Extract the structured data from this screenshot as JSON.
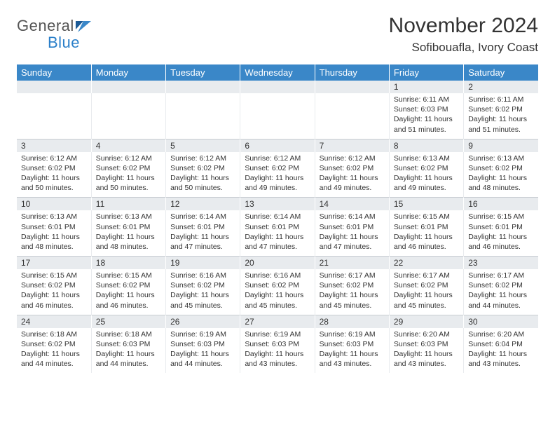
{
  "logo": {
    "line1": "General",
    "line2": "Blue",
    "accent_color": "#2a7fc9",
    "gray_color": "#555"
  },
  "title": "November 2024",
  "location": "Sofibouafla, Ivory Coast",
  "header_bg": "#3a87c8",
  "date_bg": "#e8ebee",
  "day_names": [
    "Sunday",
    "Monday",
    "Tuesday",
    "Wednesday",
    "Thursday",
    "Friday",
    "Saturday"
  ],
  "weeks": [
    {
      "dates": [
        "",
        "",
        "",
        "",
        "",
        "1",
        "2"
      ],
      "cells": [
        null,
        null,
        null,
        null,
        null,
        {
          "sunrise": "Sunrise: 6:11 AM",
          "sunset": "Sunset: 6:03 PM",
          "day1": "Daylight: 11 hours",
          "day2": "and 51 minutes."
        },
        {
          "sunrise": "Sunrise: 6:11 AM",
          "sunset": "Sunset: 6:02 PM",
          "day1": "Daylight: 11 hours",
          "day2": "and 51 minutes."
        }
      ]
    },
    {
      "dates": [
        "3",
        "4",
        "5",
        "6",
        "7",
        "8",
        "9"
      ],
      "cells": [
        {
          "sunrise": "Sunrise: 6:12 AM",
          "sunset": "Sunset: 6:02 PM",
          "day1": "Daylight: 11 hours",
          "day2": "and 50 minutes."
        },
        {
          "sunrise": "Sunrise: 6:12 AM",
          "sunset": "Sunset: 6:02 PM",
          "day1": "Daylight: 11 hours",
          "day2": "and 50 minutes."
        },
        {
          "sunrise": "Sunrise: 6:12 AM",
          "sunset": "Sunset: 6:02 PM",
          "day1": "Daylight: 11 hours",
          "day2": "and 50 minutes."
        },
        {
          "sunrise": "Sunrise: 6:12 AM",
          "sunset": "Sunset: 6:02 PM",
          "day1": "Daylight: 11 hours",
          "day2": "and 49 minutes."
        },
        {
          "sunrise": "Sunrise: 6:12 AM",
          "sunset": "Sunset: 6:02 PM",
          "day1": "Daylight: 11 hours",
          "day2": "and 49 minutes."
        },
        {
          "sunrise": "Sunrise: 6:13 AM",
          "sunset": "Sunset: 6:02 PM",
          "day1": "Daylight: 11 hours",
          "day2": "and 49 minutes."
        },
        {
          "sunrise": "Sunrise: 6:13 AM",
          "sunset": "Sunset: 6:02 PM",
          "day1": "Daylight: 11 hours",
          "day2": "and 48 minutes."
        }
      ]
    },
    {
      "dates": [
        "10",
        "11",
        "12",
        "13",
        "14",
        "15",
        "16"
      ],
      "cells": [
        {
          "sunrise": "Sunrise: 6:13 AM",
          "sunset": "Sunset: 6:01 PM",
          "day1": "Daylight: 11 hours",
          "day2": "and 48 minutes."
        },
        {
          "sunrise": "Sunrise: 6:13 AM",
          "sunset": "Sunset: 6:01 PM",
          "day1": "Daylight: 11 hours",
          "day2": "and 48 minutes."
        },
        {
          "sunrise": "Sunrise: 6:14 AM",
          "sunset": "Sunset: 6:01 PM",
          "day1": "Daylight: 11 hours",
          "day2": "and 47 minutes."
        },
        {
          "sunrise": "Sunrise: 6:14 AM",
          "sunset": "Sunset: 6:01 PM",
          "day1": "Daylight: 11 hours",
          "day2": "and 47 minutes."
        },
        {
          "sunrise": "Sunrise: 6:14 AM",
          "sunset": "Sunset: 6:01 PM",
          "day1": "Daylight: 11 hours",
          "day2": "and 47 minutes."
        },
        {
          "sunrise": "Sunrise: 6:15 AM",
          "sunset": "Sunset: 6:01 PM",
          "day1": "Daylight: 11 hours",
          "day2": "and 46 minutes."
        },
        {
          "sunrise": "Sunrise: 6:15 AM",
          "sunset": "Sunset: 6:01 PM",
          "day1": "Daylight: 11 hours",
          "day2": "and 46 minutes."
        }
      ]
    },
    {
      "dates": [
        "17",
        "18",
        "19",
        "20",
        "21",
        "22",
        "23"
      ],
      "cells": [
        {
          "sunrise": "Sunrise: 6:15 AM",
          "sunset": "Sunset: 6:02 PM",
          "day1": "Daylight: 11 hours",
          "day2": "and 46 minutes."
        },
        {
          "sunrise": "Sunrise: 6:15 AM",
          "sunset": "Sunset: 6:02 PM",
          "day1": "Daylight: 11 hours",
          "day2": "and 46 minutes."
        },
        {
          "sunrise": "Sunrise: 6:16 AM",
          "sunset": "Sunset: 6:02 PM",
          "day1": "Daylight: 11 hours",
          "day2": "and 45 minutes."
        },
        {
          "sunrise": "Sunrise: 6:16 AM",
          "sunset": "Sunset: 6:02 PM",
          "day1": "Daylight: 11 hours",
          "day2": "and 45 minutes."
        },
        {
          "sunrise": "Sunrise: 6:17 AM",
          "sunset": "Sunset: 6:02 PM",
          "day1": "Daylight: 11 hours",
          "day2": "and 45 minutes."
        },
        {
          "sunrise": "Sunrise: 6:17 AM",
          "sunset": "Sunset: 6:02 PM",
          "day1": "Daylight: 11 hours",
          "day2": "and 45 minutes."
        },
        {
          "sunrise": "Sunrise: 6:17 AM",
          "sunset": "Sunset: 6:02 PM",
          "day1": "Daylight: 11 hours",
          "day2": "and 44 minutes."
        }
      ]
    },
    {
      "dates": [
        "24",
        "25",
        "26",
        "27",
        "28",
        "29",
        "30"
      ],
      "cells": [
        {
          "sunrise": "Sunrise: 6:18 AM",
          "sunset": "Sunset: 6:02 PM",
          "day1": "Daylight: 11 hours",
          "day2": "and 44 minutes."
        },
        {
          "sunrise": "Sunrise: 6:18 AM",
          "sunset": "Sunset: 6:03 PM",
          "day1": "Daylight: 11 hours",
          "day2": "and 44 minutes."
        },
        {
          "sunrise": "Sunrise: 6:19 AM",
          "sunset": "Sunset: 6:03 PM",
          "day1": "Daylight: 11 hours",
          "day2": "and 44 minutes."
        },
        {
          "sunrise": "Sunrise: 6:19 AM",
          "sunset": "Sunset: 6:03 PM",
          "day1": "Daylight: 11 hours",
          "day2": "and 43 minutes."
        },
        {
          "sunrise": "Sunrise: 6:19 AM",
          "sunset": "Sunset: 6:03 PM",
          "day1": "Daylight: 11 hours",
          "day2": "and 43 minutes."
        },
        {
          "sunrise": "Sunrise: 6:20 AM",
          "sunset": "Sunset: 6:03 PM",
          "day1": "Daylight: 11 hours",
          "day2": "and 43 minutes."
        },
        {
          "sunrise": "Sunrise: 6:20 AM",
          "sunset": "Sunset: 6:04 PM",
          "day1": "Daylight: 11 hours",
          "day2": "and 43 minutes."
        }
      ]
    }
  ]
}
